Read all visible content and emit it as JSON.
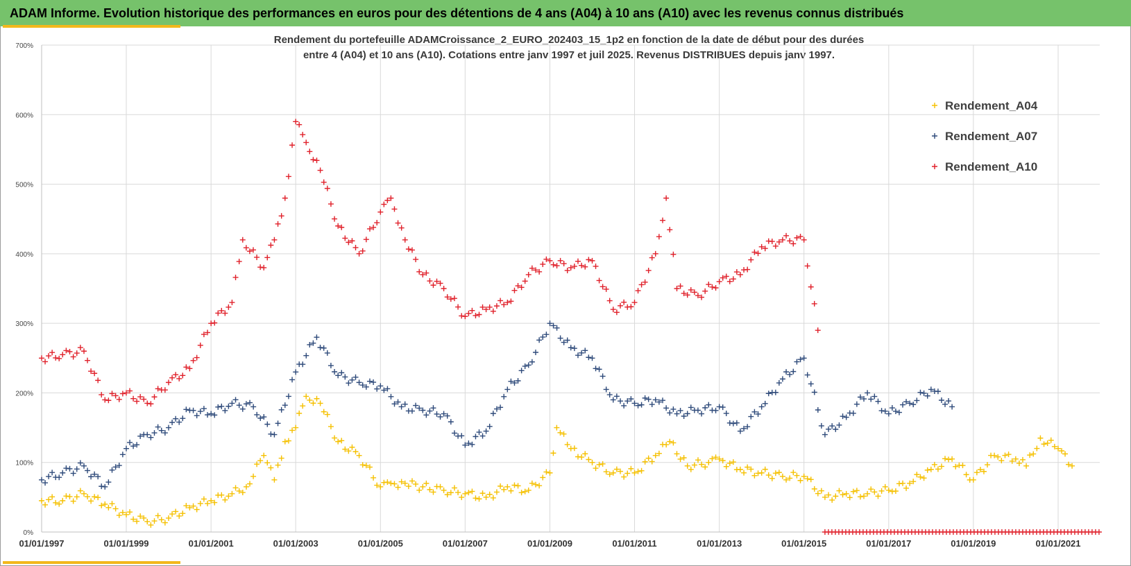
{
  "header": {
    "banner_title": "ADAM Informe. Evolution historique des performances en euros pour des détentions de 4 ans (A04) à 10 ans (A10) avec les revenus connus distribués"
  },
  "chart_data": {
    "type": "scatter",
    "title_line1": "Rendement du portefeuille ADAMCroissance_2_EURO_202403_15_1p2  en fonction de la date de début pour des durées",
    "title_line2": "entre 4 (A04) et 10 ans (A10). Cotations  entre janv 1997 et juil 2025. Revenus DISTRIBUES depuis janv 1997.",
    "xlabel": "",
    "ylabel": "",
    "x_range": [
      "1997-01-01",
      "2022-01-01"
    ],
    "ylim": [
      0,
      700
    ],
    "y_unit": "%",
    "y_ticks": [
      "0%",
      "100%",
      "200%",
      "300%",
      "400%",
      "500%",
      "600%",
      "700%"
    ],
    "x_ticks": [
      "01/01/1997",
      "01/01/1999",
      "01/01/2001",
      "01/01/2003",
      "01/01/2005",
      "01/01/2007",
      "01/01/2009",
      "01/01/2011",
      "01/01/2013",
      "01/01/2015",
      "01/01/2017",
      "01/01/2019",
      "01/01/2021"
    ],
    "grid": true,
    "legend_position": "top-right",
    "marker": "+",
    "series": [
      {
        "name": "Rendement_A04",
        "color": "#f5c000",
        "x": [
          "1997-01-01",
          "1997-07-01",
          "1998-01-01",
          "1998-07-01",
          "1999-01-01",
          "1999-07-01",
          "2000-01-01",
          "2000-07-01",
          "2001-01-01",
          "2001-07-01",
          "2001-11-01",
          "2002-04-01",
          "2002-07-01",
          "2002-10-01",
          "2003-01-01",
          "2003-04-01",
          "2003-08-01",
          "2004-01-01",
          "2004-07-01",
          "2005-01-01",
          "2005-04-01",
          "2005-08-01",
          "2006-01-01",
          "2006-07-01",
          "2007-01-01",
          "2007-07-01",
          "2008-01-01",
          "2008-07-01",
          "2009-01-01",
          "2009-03-01",
          "2009-07-01",
          "2010-01-01",
          "2010-07-01",
          "2011-01-01",
          "2011-07-01",
          "2011-11-01",
          "2012-04-01",
          "2012-10-01",
          "2013-01-01",
          "2013-07-01",
          "2014-01-01",
          "2014-07-01",
          "2015-01-01",
          "2015-07-01",
          "2016-01-01",
          "2016-07-01",
          "2017-01-01",
          "2017-07-01",
          "2018-01-01",
          "2018-07-01",
          "2019-01-01",
          "2019-07-01",
          "2020-01-01",
          "2020-04-01",
          "2020-08-01",
          "2021-01-01",
          "2021-05-01"
        ],
        "values": [
          45,
          45,
          55,
          40,
          25,
          15,
          20,
          35,
          45,
          55,
          65,
          110,
          75,
          130,
          150,
          195,
          185,
          130,
          110,
          65,
          70,
          70,
          65,
          60,
          55,
          50,
          65,
          60,
          85,
          150,
          120,
          100,
          85,
          85,
          110,
          130,
          95,
          100,
          105,
          90,
          85,
          80,
          80,
          50,
          55,
          55,
          60,
          70,
          90,
          105,
          75,
          110,
          105,
          95,
          135,
          120,
          95
        ]
      },
      {
        "name": "Rendement_A07",
        "color": "#2e4a7a",
        "x": [
          "1997-01-01",
          "1997-07-01",
          "1998-01-01",
          "1998-07-01",
          "1999-01-01",
          "1999-07-01",
          "2000-01-01",
          "2000-07-01",
          "2001-01-01",
          "2001-07-01",
          "2002-01-01",
          "2002-07-01",
          "2003-01-01",
          "2003-07-01",
          "2004-01-01",
          "2004-07-01",
          "2005-01-01",
          "2005-07-01",
          "2006-01-01",
          "2006-07-01",
          "2007-01-01",
          "2007-07-01",
          "2008-01-01",
          "2008-07-01",
          "2009-01-01",
          "2009-07-01",
          "2010-01-01",
          "2010-07-01",
          "2011-01-01",
          "2011-07-01",
          "2012-01-01",
          "2012-07-01",
          "2013-01-01",
          "2013-07-01",
          "2014-01-01",
          "2014-07-01",
          "2015-01-01",
          "2015-07-01",
          "2016-01-01",
          "2016-07-01",
          "2017-01-01",
          "2017-07-01",
          "2018-01-01",
          "2018-07-01"
        ],
        "values": [
          75,
          85,
          95,
          65,
          120,
          140,
          150,
          175,
          170,
          185,
          180,
          140,
          230,
          280,
          225,
          215,
          210,
          180,
          175,
          170,
          125,
          145,
          205,
          240,
          300,
          265,
          250,
          190,
          185,
          190,
          170,
          175,
          180,
          145,
          180,
          220,
          250,
          140,
          165,
          200,
          170,
          185,
          205,
          180
        ]
      },
      {
        "name": "Rendement_A10",
        "color": "#e0202a",
        "x": [
          "1997-01-01",
          "1997-07-01",
          "1998-01-01",
          "1998-07-01",
          "1999-01-01",
          "1999-07-01",
          "2000-01-01",
          "2000-07-01",
          "2001-01-01",
          "2001-07-01",
          "2001-10-01",
          "2002-04-01",
          "2002-07-01",
          "2002-10-01",
          "2003-01-01",
          "2003-04-01",
          "2003-08-01",
          "2004-01-01",
          "2004-07-01",
          "2005-01-01",
          "2005-04-01",
          "2005-08-01",
          "2006-01-01",
          "2006-07-01",
          "2007-01-01",
          "2007-07-01",
          "2008-01-01",
          "2008-07-01",
          "2009-01-01",
          "2009-07-01",
          "2010-01-01",
          "2010-07-01",
          "2011-01-01",
          "2011-07-01",
          "2011-10-01",
          "2012-01-01",
          "2012-07-01",
          "2013-01-01",
          "2013-07-01",
          "2014-01-01",
          "2014-07-01",
          "2015-01-01",
          "2015-05-01"
        ],
        "values": [
          250,
          255,
          260,
          190,
          200,
          185,
          215,
          235,
          300,
          330,
          420,
          380,
          420,
          480,
          590,
          560,
          520,
          440,
          400,
          460,
          480,
          420,
          370,
          350,
          310,
          320,
          330,
          370,
          390,
          380,
          390,
          320,
          330,
          400,
          480,
          350,
          340,
          360,
          370,
          410,
          420,
          420,
          290
        ]
      }
    ],
    "zero_markers": {
      "color": "#e0202a",
      "value": 0,
      "x_start": "2015-07-01",
      "x_end": "2022-01-01"
    }
  }
}
